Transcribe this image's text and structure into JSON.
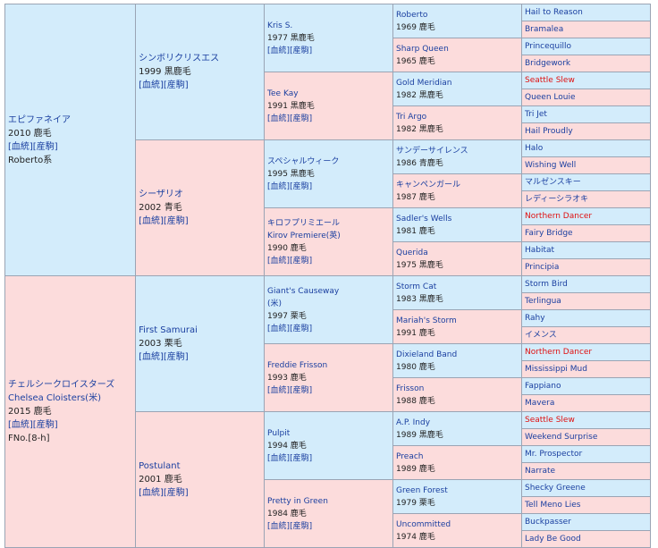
{
  "gen1": [
    {
      "name": "エピファネイア",
      "year": "2010",
      "color": "鹿毛",
      "links": "[血統][産駒]",
      "extra": "Roberto系"
    },
    {
      "name": "チェルシークロイスターズ",
      "name_en": "Chelsea Cloisters(米)",
      "year": "2015",
      "color": "鹿毛",
      "links": "[血統][産駒]",
      "extra": "FNo.[8-h]"
    }
  ],
  "gen2": [
    {
      "name": "シンボリクリスエス",
      "info": "1999 黒鹿毛",
      "links": "[血統][産駒]"
    },
    {
      "name": "シーザリオ",
      "info": "2002 青毛",
      "links": "[血統][産駒]"
    },
    {
      "name": "First Samurai",
      "info": "2003 栗毛",
      "links": "[血統][産駒]"
    },
    {
      "name": "Postulant",
      "info": "2001 鹿毛",
      "links": "[血統][産駒]"
    }
  ],
  "gen3": [
    {
      "name": "Kris S.",
      "info": "1977 黒鹿毛",
      "links": "[血統][産駒]"
    },
    {
      "name": "Tee Kay",
      "info": "1991 黒鹿毛",
      "links": "[血統][産駒]"
    },
    {
      "name": "スペシャルウィーク",
      "info": "1995 黒鹿毛",
      "links": "[血統][産駒]"
    },
    {
      "name": "キロフプリミエール",
      "name_en": "Kirov Premiere(英)",
      "info": "1990 鹿毛",
      "links": "[血統][産駒]"
    },
    {
      "name": "Giant's Causeway",
      "name_en": "(米)",
      "info": "1997 栗毛",
      "links": "[血統][産駒]"
    },
    {
      "name": "Freddie Frisson",
      "info": "1993 鹿毛",
      "links": "[血統][産駒]"
    },
    {
      "name": "Pulpit",
      "info": "1994 鹿毛",
      "links": "[血統][産駒]"
    },
    {
      "name": "Pretty in Green",
      "info": "1984 鹿毛",
      "links": "[血統][産駒]"
    }
  ],
  "gen4": [
    {
      "name": "Roberto",
      "info": "1969 鹿毛"
    },
    {
      "name": "Sharp Queen",
      "info": "1965 鹿毛"
    },
    {
      "name": "Gold Meridian",
      "info": "1982 黒鹿毛"
    },
    {
      "name": "Tri Argo",
      "info": "1982 黒鹿毛"
    },
    {
      "name": "サンデーサイレンス",
      "info": "1986 青鹿毛"
    },
    {
      "name": "キャンペンガール",
      "info": "1987 鹿毛"
    },
    {
      "name": "Sadler's Wells",
      "info": "1981 鹿毛"
    },
    {
      "name": "Querida",
      "info": "1975 黒鹿毛"
    },
    {
      "name": "Storm Cat",
      "info": "1983 黒鹿毛"
    },
    {
      "name": "Mariah's Storm",
      "info": "1991 鹿毛"
    },
    {
      "name": "Dixieland Band",
      "info": "1980 鹿毛"
    },
    {
      "name": "Frisson",
      "info": "1988 鹿毛"
    },
    {
      "name": "A.P. Indy",
      "info": "1989 黒鹿毛"
    },
    {
      "name": "Preach",
      "info": "1989 鹿毛"
    },
    {
      "name": "Green Forest",
      "info": "1979 栗毛"
    },
    {
      "name": "Uncommitted",
      "info": "1974 鹿毛"
    }
  ],
  "gen5": [
    {
      "name": "Hail to Reason",
      "red": false
    },
    {
      "name": "Bramalea",
      "red": false
    },
    {
      "name": "Princequillo",
      "red": false
    },
    {
      "name": "Bridgework",
      "red": false
    },
    {
      "name": "Seattle Slew",
      "red": true
    },
    {
      "name": "Queen Louie",
      "red": false
    },
    {
      "name": "Tri Jet",
      "red": false
    },
    {
      "name": "Hail Proudly",
      "red": false
    },
    {
      "name": "Halo",
      "red": false
    },
    {
      "name": "Wishing Well",
      "red": false
    },
    {
      "name": "マルゼンスキー",
      "red": false
    },
    {
      "name": "レディーシラオキ",
      "red": false
    },
    {
      "name": "Northern Dancer",
      "red": true
    },
    {
      "name": "Fairy Bridge",
      "red": false
    },
    {
      "name": "Habitat",
      "red": false
    },
    {
      "name": "Principia",
      "red": false
    },
    {
      "name": "Storm Bird",
      "red": false
    },
    {
      "name": "Terlingua",
      "red": false
    },
    {
      "name": "Rahy",
      "red": false
    },
    {
      "name": "イメンス",
      "red": false
    },
    {
      "name": "Northern Dancer",
      "red": true
    },
    {
      "name": "Mississippi Mud",
      "red": false
    },
    {
      "name": "Fappiano",
      "red": false
    },
    {
      "name": "Mavera",
      "red": false
    },
    {
      "name": "Seattle Slew",
      "red": true
    },
    {
      "name": "Weekend Surprise",
      "red": false
    },
    {
      "name": "Mr. Prospector",
      "red": false
    },
    {
      "name": "Narrate",
      "red": false
    },
    {
      "name": "Shecky Greene",
      "red": false
    },
    {
      "name": "Tell Meno Lies",
      "red": false
    },
    {
      "name": "Buckpasser",
      "red": false
    },
    {
      "name": "Lady Be Good",
      "red": false
    }
  ]
}
